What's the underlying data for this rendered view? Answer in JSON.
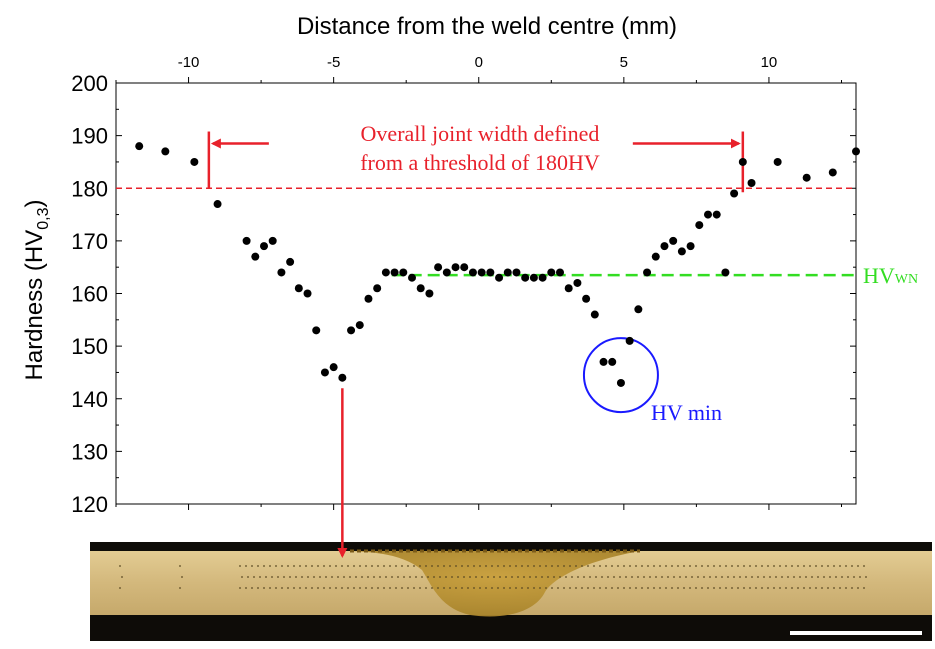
{
  "chart_data": {
    "type": "scatter",
    "title": "",
    "xlabel": "Distance from the weld centre (mm)",
    "ylabel_main": "Hardness (HV",
    "ylabel_sub": "0,3",
    "ylabel_close": ")",
    "xlim": [
      -12.5,
      13
    ],
    "ylim": [
      120,
      200
    ],
    "x_ticks": [
      -10,
      -5,
      0,
      5,
      10
    ],
    "x_tick_labels": [
      "-10",
      "-5",
      "0",
      "5",
      "10"
    ],
    "y_ticks": [
      120,
      130,
      140,
      150,
      160,
      170,
      180,
      190,
      200
    ],
    "y_tick_labels": [
      "120",
      "130",
      "140",
      "150",
      "160",
      "170",
      "180",
      "190",
      "200"
    ],
    "grid": false,
    "x_axis_position": "top",
    "series": [
      {
        "points": [
          [
            -11.7,
            188
          ],
          [
            -10.8,
            187
          ],
          [
            -9.8,
            185
          ],
          [
            -9.0,
            177
          ],
          [
            -8.0,
            170
          ],
          [
            -7.7,
            167
          ],
          [
            -7.4,
            169
          ],
          [
            -7.1,
            170
          ],
          [
            -6.8,
            164
          ],
          [
            -6.5,
            166
          ],
          [
            -6.2,
            161
          ],
          [
            -5.9,
            160
          ],
          [
            -5.6,
            153
          ],
          [
            -5.3,
            145
          ],
          [
            -5.0,
            146
          ],
          [
            -4.7,
            144
          ],
          [
            -4.4,
            153
          ],
          [
            -4.1,
            154
          ],
          [
            -3.8,
            159
          ],
          [
            -3.5,
            161
          ],
          [
            -3.2,
            164
          ],
          [
            -2.9,
            164
          ],
          [
            -2.6,
            164
          ],
          [
            -2.3,
            163
          ],
          [
            -2.0,
            161
          ],
          [
            -1.7,
            160
          ],
          [
            -1.4,
            165
          ],
          [
            -1.1,
            164
          ],
          [
            -0.8,
            165
          ],
          [
            -0.5,
            165
          ],
          [
            -0.2,
            164
          ],
          [
            0.1,
            164
          ],
          [
            0.4,
            164
          ],
          [
            0.7,
            163
          ],
          [
            1.0,
            164
          ],
          [
            1.3,
            164
          ],
          [
            1.6,
            163
          ],
          [
            1.9,
            163
          ],
          [
            2.2,
            163
          ],
          [
            2.5,
            164
          ],
          [
            2.8,
            164
          ],
          [
            3.1,
            161
          ],
          [
            3.4,
            162
          ],
          [
            3.7,
            159
          ],
          [
            4.0,
            156
          ],
          [
            4.3,
            147
          ],
          [
            4.6,
            147
          ],
          [
            4.9,
            143
          ],
          [
            5.2,
            151
          ],
          [
            5.5,
            157
          ],
          [
            5.8,
            164
          ],
          [
            6.1,
            167
          ],
          [
            6.4,
            169
          ],
          [
            6.7,
            170
          ],
          [
            7.0,
            168
          ],
          [
            7.3,
            169
          ],
          [
            7.6,
            173
          ],
          [
            7.9,
            175
          ],
          [
            8.2,
            175
          ],
          [
            8.5,
            164
          ],
          [
            8.8,
            179
          ],
          [
            9.1,
            185
          ],
          [
            9.4,
            181
          ],
          [
            10.3,
            185
          ],
          [
            11.3,
            182
          ],
          [
            12.2,
            183
          ],
          [
            13.0,
            187
          ]
        ]
      }
    ],
    "threshold_line": {
      "y": 180,
      "color": "#e8212b"
    },
    "hv_wn_line": {
      "y": 163.5,
      "color": "#33dd22",
      "label": "HV",
      "label_sub": "WN"
    },
    "annotation_width": {
      "line1": "Overall joint width defined",
      "line2": "from a threshold of 180HV",
      "x_left": -9.3,
      "x_right": 9.1,
      "color": "#e8212b"
    },
    "annotation_min": {
      "label": "HV min",
      "cx": 4.9,
      "cy": 144.5,
      "color": "#1a1aff"
    },
    "min_arrow_x": -4.7
  },
  "colors": {
    "marker": "#000000",
    "axis": "#000000",
    "photo_bg": "#0e0c08",
    "photo_metal": "#cdb37a",
    "photo_weld": "#b8922e"
  }
}
